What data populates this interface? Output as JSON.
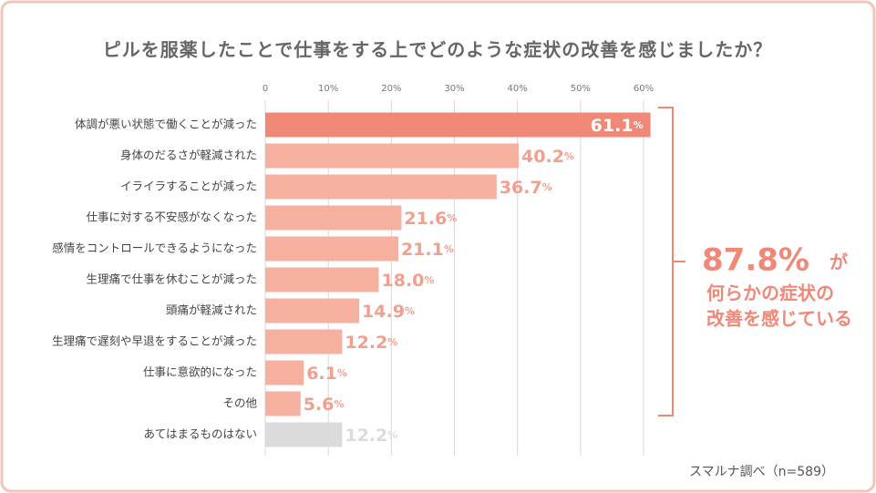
{
  "chart_data": {
    "type": "bar",
    "orientation": "horizontal",
    "title": "ピルを服薬したことで仕事をする上でどのような症状の改善を感じましたか？",
    "categories": [
      "体調が悪い状態で働くことが減った",
      "身体のだるさが軽減された",
      "イライラすることが減った",
      "仕事に対する不安感がなくなった",
      "感情をコントロールできるようになった",
      "生理痛で仕事を休むことが減った",
      "頭痛が軽減された",
      "生理痛で遅刻や早退をすることが減った",
      "仕事に意欲的になった",
      "その他",
      "あてはまるものはない"
    ],
    "values": [
      61.1,
      40.2,
      36.7,
      21.6,
      21.1,
      18.0,
      14.9,
      12.2,
      6.1,
      5.6,
      12.2
    ],
    "value_labels": [
      "61.1%",
      "40.2%",
      "36.7%",
      "21.6%",
      "21.1%",
      "18.0%",
      "14.9%",
      "12.2%",
      "6.1%",
      "5.6%",
      "12.2%"
    ],
    "colors": [
      "#f08878",
      "#f5b0a0",
      "#f5b0a0",
      "#f5b0a0",
      "#f5b0a0",
      "#f5b0a0",
      "#f5b0a0",
      "#f5b0a0",
      "#f5b0a0",
      "#f5b0a0",
      "#dcdbdb"
    ],
    "label_colors": [
      "#ffffff",
      "#f2a08e",
      "#f2a08e",
      "#f2a08e",
      "#f2a08e",
      "#f2a08e",
      "#f2a08e",
      "#f2a08e",
      "#f2a08e",
      "#f2a08e",
      "#dcdbdb"
    ],
    "xlim": [
      0,
      60
    ],
    "xticks": [
      0,
      {
        "value": 10,
        "label": "10%"
      },
      {
        "value": 20,
        "label": "20%"
      },
      {
        "value": 30,
        "label": "30%"
      },
      {
        "value": 40,
        "label": "40%"
      },
      {
        "value": 50,
        "label": "50%"
      },
      {
        "value": 60,
        "label": "60%"
      }
    ],
    "grid": true,
    "annotation": {
      "figure": "87.8%",
      "suffix": "が",
      "lines": [
        "何らかの症状の",
        "改善を感じている"
      ]
    },
    "source": "スマルナ調べ（n=589）"
  }
}
